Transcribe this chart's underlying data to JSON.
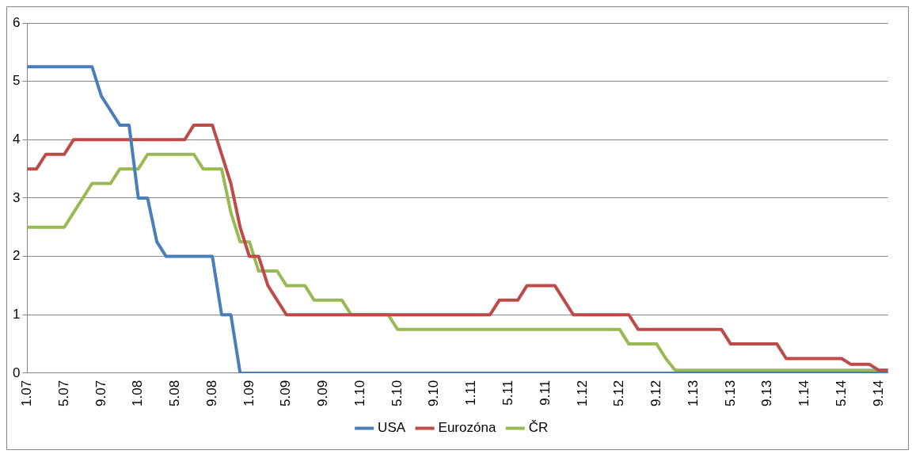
{
  "chart_data": {
    "type": "line",
    "categories": [
      "1.07",
      null,
      null,
      null,
      "5.07",
      null,
      null,
      null,
      "9.07",
      null,
      null,
      null,
      "1.08",
      null,
      null,
      null,
      "5.08",
      null,
      null,
      null,
      "9.08",
      null,
      null,
      null,
      "1.09",
      null,
      null,
      null,
      "5.09",
      null,
      null,
      null,
      "9.09",
      null,
      null,
      null,
      "1.10",
      null,
      null,
      null,
      "5.10",
      null,
      null,
      null,
      "9.10",
      null,
      null,
      null,
      "1.11",
      null,
      null,
      null,
      "5.11",
      null,
      null,
      null,
      "9.11",
      null,
      null,
      null,
      "1.12",
      null,
      null,
      null,
      "5.12",
      null,
      null,
      null,
      "9.12",
      null,
      null,
      null,
      "1.13",
      null,
      null,
      null,
      "5.13",
      null,
      null,
      null,
      "9.13",
      null,
      null,
      null,
      "1.14",
      null,
      null,
      null,
      "5.14",
      null,
      null,
      null,
      "9.14",
      null
    ],
    "series": [
      {
        "name": "USA",
        "color": "#4a7ebb",
        "values": [
          5.25,
          5.25,
          5.25,
          5.25,
          5.25,
          5.25,
          5.25,
          5.25,
          4.75,
          4.5,
          4.25,
          4.25,
          3,
          3,
          2.25,
          2,
          2,
          2,
          2,
          2,
          2,
          1,
          1,
          0,
          0,
          0,
          0,
          0,
          0,
          0,
          0,
          0,
          0,
          0,
          0,
          0,
          0,
          0,
          0,
          0,
          0,
          0,
          0,
          0,
          0,
          0,
          0,
          0,
          0,
          0,
          0,
          0,
          0,
          0,
          0,
          0,
          0,
          0,
          0,
          0,
          0,
          0,
          0,
          0,
          0,
          0,
          0,
          0,
          0,
          0,
          0,
          0,
          0,
          0,
          0,
          0,
          0,
          0,
          0,
          0,
          0,
          0,
          0,
          0,
          0,
          0,
          0,
          0,
          0,
          0,
          0,
          0,
          0,
          0
        ]
      },
      {
        "name": "Eurozóna",
        "color": "#be4b48",
        "values": [
          3.5,
          3.5,
          3.75,
          3.75,
          3.75,
          4,
          4,
          4,
          4,
          4,
          4,
          4,
          4,
          4,
          4,
          4,
          4,
          4,
          4.25,
          4.25,
          4.25,
          3.75,
          3.25,
          2.5,
          2,
          2,
          1.5,
          1.25,
          1,
          1,
          1,
          1,
          1,
          1,
          1,
          1,
          1,
          1,
          1,
          1,
          1,
          1,
          1,
          1,
          1,
          1,
          1,
          1,
          1,
          1,
          1,
          1.25,
          1.25,
          1.25,
          1.5,
          1.5,
          1.5,
          1.5,
          1.25,
          1,
          1,
          1,
          1,
          1,
          1,
          1,
          0.75,
          0.75,
          0.75,
          0.75,
          0.75,
          0.75,
          0.75,
          0.75,
          0.75,
          0.75,
          0.5,
          0.5,
          0.5,
          0.5,
          0.5,
          0.5,
          0.25,
          0.25,
          0.25,
          0.25,
          0.25,
          0.25,
          0.25,
          0.15,
          0.15,
          0.15,
          0.05,
          0.05
        ]
      },
      {
        "name": "ČR",
        "color": "#98b954",
        "values": [
          2.5,
          2.5,
          2.5,
          2.5,
          2.5,
          2.75,
          3,
          3.25,
          3.25,
          3.25,
          3.5,
          3.5,
          3.5,
          3.75,
          3.75,
          3.75,
          3.75,
          3.75,
          3.75,
          3.5,
          3.5,
          3.5,
          2.75,
          2.25,
          2.25,
          1.75,
          1.75,
          1.75,
          1.5,
          1.5,
          1.5,
          1.25,
          1.25,
          1.25,
          1.25,
          1,
          1,
          1,
          1,
          1,
          0.75,
          0.75,
          0.75,
          0.75,
          0.75,
          0.75,
          0.75,
          0.75,
          0.75,
          0.75,
          0.75,
          0.75,
          0.75,
          0.75,
          0.75,
          0.75,
          0.75,
          0.75,
          0.75,
          0.75,
          0.75,
          0.75,
          0.75,
          0.75,
          0.75,
          0.5,
          0.5,
          0.5,
          0.5,
          0.25,
          0.05,
          0.05,
          0.05,
          0.05,
          0.05,
          0.05,
          0.05,
          0.05,
          0.05,
          0.05,
          0.05,
          0.05,
          0.05,
          0.05,
          0.05,
          0.05,
          0.05,
          0.05,
          0.05,
          0.05,
          0.05,
          0.05,
          0.05,
          0.05
        ]
      }
    ],
    "ylim": [
      0,
      6
    ],
    "yticks": [
      0,
      1,
      2,
      3,
      4,
      5,
      6
    ],
    "grid": "y",
    "legend": "bottom",
    "marker": "none",
    "line_style": "solid"
  }
}
